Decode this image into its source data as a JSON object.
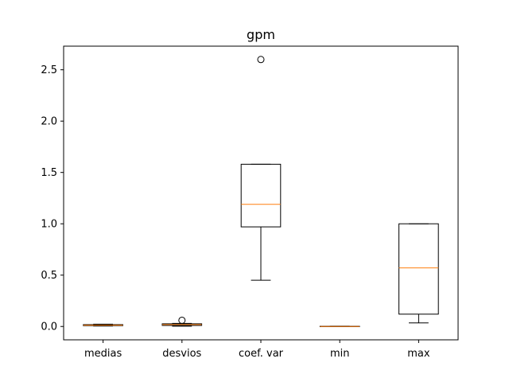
{
  "chart_data": {
    "type": "box",
    "title": "gpm",
    "xlabel": "",
    "ylabel": "",
    "ylim": [
      -0.13,
      2.73
    ],
    "yticks": [
      0.0,
      0.5,
      1.0,
      1.5,
      2.0,
      2.5
    ],
    "ytick_labels": [
      "0.0",
      "0.5",
      "1.0",
      "1.5",
      "2.0",
      "2.5"
    ],
    "categories": [
      "medias",
      "desvios",
      "coef. var",
      "min",
      "max"
    ],
    "boxes": [
      {
        "label": "medias",
        "whislo": 0.005,
        "q1": 0.008,
        "med": 0.012,
        "q3": 0.018,
        "whishi": 0.022,
        "fliers": []
      },
      {
        "label": "desvios",
        "whislo": 0.003,
        "q1": 0.01,
        "med": 0.018,
        "q3": 0.026,
        "whishi": 0.03,
        "fliers": [
          0.06
        ]
      },
      {
        "label": "coef. var",
        "whislo": 0.45,
        "q1": 0.97,
        "med": 1.19,
        "q3": 1.58,
        "whishi": 1.58,
        "fliers": [
          2.6
        ]
      },
      {
        "label": "min",
        "whislo": 0.0,
        "q1": 0.0,
        "med": 0.0,
        "q3": 0.002,
        "whishi": 0.003,
        "fliers": []
      },
      {
        "label": "max",
        "whislo": 0.035,
        "q1": 0.12,
        "med": 0.57,
        "q3": 1.0,
        "whishi": 1.0,
        "fliers": []
      }
    ],
    "colors": {
      "box": "#000000",
      "median": "#ff7f0e",
      "axes": "#000000"
    },
    "grid": false,
    "legend": "none"
  }
}
